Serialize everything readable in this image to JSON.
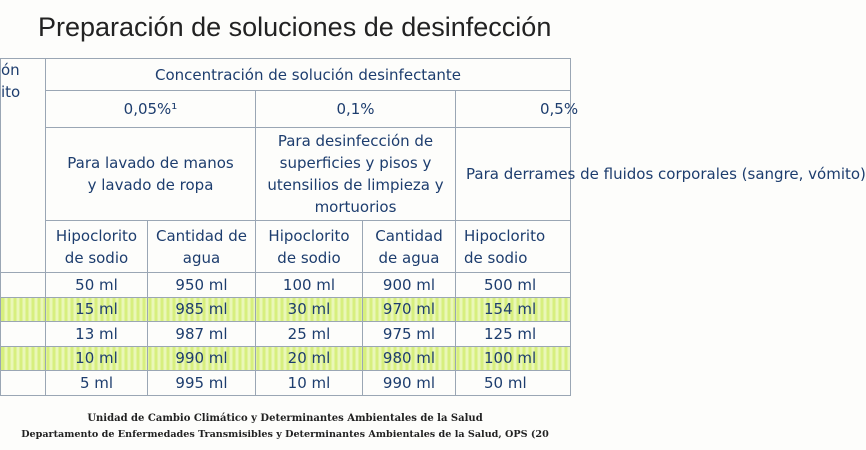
{
  "title": "Preparación de soluciones de desinfección",
  "table": {
    "corner": [
      "ón",
      "ito"
    ],
    "group_header": "Concentración de solución desinfectante",
    "concentrations": [
      "0,05%¹",
      "0,1%",
      "0,5%"
    ],
    "purposes": [
      "Para lavado de manos y lavado de ropa",
      "Para desinfección de superficies y pisos y utensilios de limpieza y mortuorios",
      "Para derrames de fluidos corporales (sangre, vómito)"
    ],
    "column_headers": [
      "Hipoclorito de sodio",
      "Cantidad de agua",
      "Hipoclorito de sodio",
      "Cantidad de agua",
      "Hipoclorito de sodio"
    ],
    "rows": [
      [
        "50 ml",
        "950 ml",
        "100 ml",
        "900 ml",
        "500 ml"
      ],
      [
        "15 ml",
        "985 ml",
        "30 ml",
        "970 ml",
        "154 ml"
      ],
      [
        "13 ml",
        "987 ml",
        "25 ml",
        "975 ml",
        "125 ml"
      ],
      [
        "10 ml",
        "990 ml",
        "20 ml",
        "980 ml",
        "100 ml"
      ],
      [
        "5 ml",
        "995 ml",
        "10 ml",
        "990 ml",
        "50 ml"
      ]
    ]
  },
  "footer": [
    "Unidad de Cambio Climático y Determinantes Ambientales de la Salud",
    "Departamento de Enfermedades Transmisibles y Determinantes Ambientales de la Salud, OPS (20"
  ]
}
